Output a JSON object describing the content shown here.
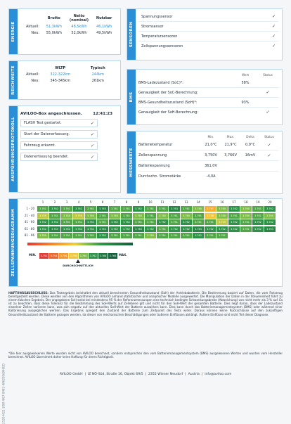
{
  "energie": {
    "title": "ENERGIE",
    "columns": [
      "Brutto",
      "Netto (nominal)",
      "Nutzbar"
    ],
    "rows": [
      {
        "label": "Aktuell:",
        "values": [
          "51,3kWh",
          "48,5kWh",
          "46,1kWh"
        ]
      },
      {
        "label": "Neu:",
        "values": [
          "55,0kWh",
          "52,0kWh",
          "49,5kWh"
        ]
      }
    ]
  },
  "reichweite": {
    "title": "REICHWEITE",
    "columns": [
      "WLTP",
      "Typisch"
    ],
    "rows": [
      {
        "label": "Aktuell:",
        "values": [
          "322-322km",
          "244km"
        ]
      },
      {
        "label": "Neu:",
        "values": [
          "345-345km",
          "261km"
        ]
      }
    ]
  },
  "protokoll": {
    "title": "AUSFÜHRUNGSPROTOKOLL",
    "header": "AVILOO-Box angeschlossen.",
    "time": "12:41:23",
    "steps": [
      {
        "text": "FLASH Test gestartet.",
        "status": "✓"
      },
      {
        "text": "Start der Datenerfassung.",
        "status": "✓"
      },
      {
        "text": "Fahrzeug erkannt.",
        "status": "✓"
      },
      {
        "text": "Datenerfassung beendet.",
        "status": "✓"
      }
    ]
  },
  "sensoren": {
    "title": "SENSOREN",
    "items": [
      {
        "text": "Spannungssensor",
        "status": "✓"
      },
      {
        "text": "Stromsensor",
        "status": "✓"
      },
      {
        "text": "Temperatursensoren",
        "status": "✓"
      },
      {
        "text": "Zellspannungssensoren",
        "status": "✓"
      }
    ]
  },
  "bms": {
    "title": "BMS",
    "columns": [
      "Wert",
      "Status"
    ],
    "rows": [
      {
        "label": "BMS-Ladezustand (SoC)*:",
        "value": "58%"
      },
      {
        "label": "Genauigkeit der SoC-Berechnung:",
        "status": "✓"
      },
      {
        "label": "BMS-Gesundheitszustand (SoH)*:",
        "value": "93%"
      },
      {
        "label": "Genauigkeit der SoH-Berechnung:",
        "status": "✓"
      }
    ]
  },
  "messwerte": {
    "title": "MESSWERTE",
    "columns": [
      "Min.",
      "Max.",
      "Delta",
      "Status"
    ],
    "rows": [
      {
        "label": "Batterietemperatur",
        "values": [
          "21,0°C",
          "21,9°C",
          "0,9°C"
        ],
        "status": "✓"
      },
      {
        "label": "Zellenspannung",
        "values": [
          "3,750V",
          "3,766V",
          "16mV"
        ],
        "status": "✓"
      },
      {
        "label": "Batteriespannung",
        "values": [
          "361,0V"
        ]
      },
      {
        "label": "Durchschn. Stromstärke",
        "values": [
          "-4,0A"
        ]
      }
    ]
  },
  "zellspannung": {
    "title": "ZELLSPANNUNGSDIAGRAMM",
    "columns": [
      "1",
      "2",
      "3",
      "4",
      "5",
      "6",
      "7",
      "8",
      "9",
      "10",
      "11",
      "12",
      "13",
      "14",
      "15",
      "16",
      "17",
      "18",
      "19",
      "20"
    ],
    "rows": [
      {
        "label": "1 - 20",
        "cells": [
          "3.761",
          "3.762",
          "3.761",
          "3.762",
          "3.761",
          "3.763",
          "3.761",
          "3.761",
          "3.762",
          "3.761",
          "3.761",
          "3.763",
          "3.761",
          "3.760",
          "3.757",
          "3.760",
          "3.762",
          "3.760",
          "3.761",
          "3.762"
        ]
      },
      {
        "label": "21 - 40",
        "cells": [
          "3.759",
          "3.761",
          "3.760",
          "3.759",
          "3.760",
          "3.761",
          "3.760",
          "3.761",
          "3.760",
          "3.761",
          "3.760",
          "3.761",
          "3.760",
          "3.761",
          "3.758",
          "3.760",
          "3.761",
          "3.760",
          "3.761",
          "3.760"
        ]
      },
      {
        "label": "41 - 60",
        "cells": [
          "3.762",
          "3.762",
          "3.761",
          "3.761",
          "3.762",
          "3.761",
          "3.762",
          "3.762",
          "3.761",
          "3.761",
          "3.762",
          "3.761",
          "3.762",
          "3.761",
          "3.761",
          "3.759",
          "3.762",
          "3.761",
          "3.762",
          "3.762"
        ]
      },
      {
        "label": "61 - 80",
        "cells": [
          "3.762",
          "3.763",
          "3.762",
          "3.762",
          "3.762",
          "3.763",
          "3.762",
          "3.762",
          "3.763",
          "3.762",
          "3.761",
          "3.762",
          "3.762",
          "3.763",
          "3.762",
          "3.762",
          "3.762",
          "3.761",
          "3.762",
          "3.763"
        ]
      },
      {
        "label": "81 - 96",
        "cells": [
          "3.760",
          "3.761",
          "3.761",
          "3.761",
          "3.761",
          "3.762",
          "3.761",
          "3.761",
          "3.761",
          "3.760",
          "3.761",
          "3.761",
          "3.761",
          "3.762",
          "3.761",
          "3.761"
        ]
      }
    ],
    "legend": {
      "min": "MIN.",
      "max": "MAX.",
      "scale": [
        "3.752",
        "3.754",
        "3.756",
        "3.758",
        "3.760",
        "3.762",
        "3.764",
        "3.766"
      ],
      "average": "DURCHSCHNITTLICH"
    }
  },
  "disclaimer": {
    "title": "HAFTUNGSAUSSCHLUSS:",
    "text": "Das Testergebnis beinhaltet den aktuell berechneten Gesundheitszustand (SoH) der Antriebsbatterie. Die Bestimmung basiert auf Daten, die vom Fahrzeug bereitgestellt werden. Diese werden von den Algorithmen von AVILOO anhand statistischer und analytischer Modelle ausgewertet. Die Manipulation der Daten in der Steuereinheit führt zu einem falschen Ergebnis. Der angegebene SoH weist bei mindestens 95 % der Referenzmessungen eine technisch bedingte Schwankungsbreite (Abweichung) von nicht mehr als 3 % auf. Es ist zu beachten, dass diese Toleranz für die Bestimmung des SoH-Werts auf Zellebene gilt und nicht für den SoH-Wert der gesamten Batterie. Dies liegt daran, dass der Ladezustand einzelner Zellen variieren kann, was sich negativ auf den aktuellen SoH-Wert der Batterie auswirken kann. Dies kann durch das Batteriemanagementsystem (BMS) oder während einer Kalibrierung ausgeglichen werden. Das Ergebnis spiegelt den Zustand der Batterie zum Zeitpunkt des Tests wider. Daraus können keine Rückschlüsse auf den zukünftigen Gesundheitszustand der Batterie gezogen werden, da dieser von mechanischen Beschädigungen oder äußeren Einflüssen abhängt. Äußere Einflüsse sind nicht Teil dieser Diagnose."
  },
  "footnote": "*Die hier ausgewiesenen Werte wurden nicht von AVILOO berechnet, sondern entsprechen den vom Batteriemanagementsystem (BMS) ausgelesenen Werten und wurden vom Hersteller berechnet. AVILOO übernimmt daher keine Haftung für deren Richtigkeit.",
  "footer": "AVILOO GmbH  |  IZ NÖ-Süd, Straße 16, Objekt 69/5  |  2355 Wiener Neudorf  |  Austria  |  info@aviloo.com",
  "document_id": "21924422-1f98-4f67-8482-4ff62E06949ED"
}
